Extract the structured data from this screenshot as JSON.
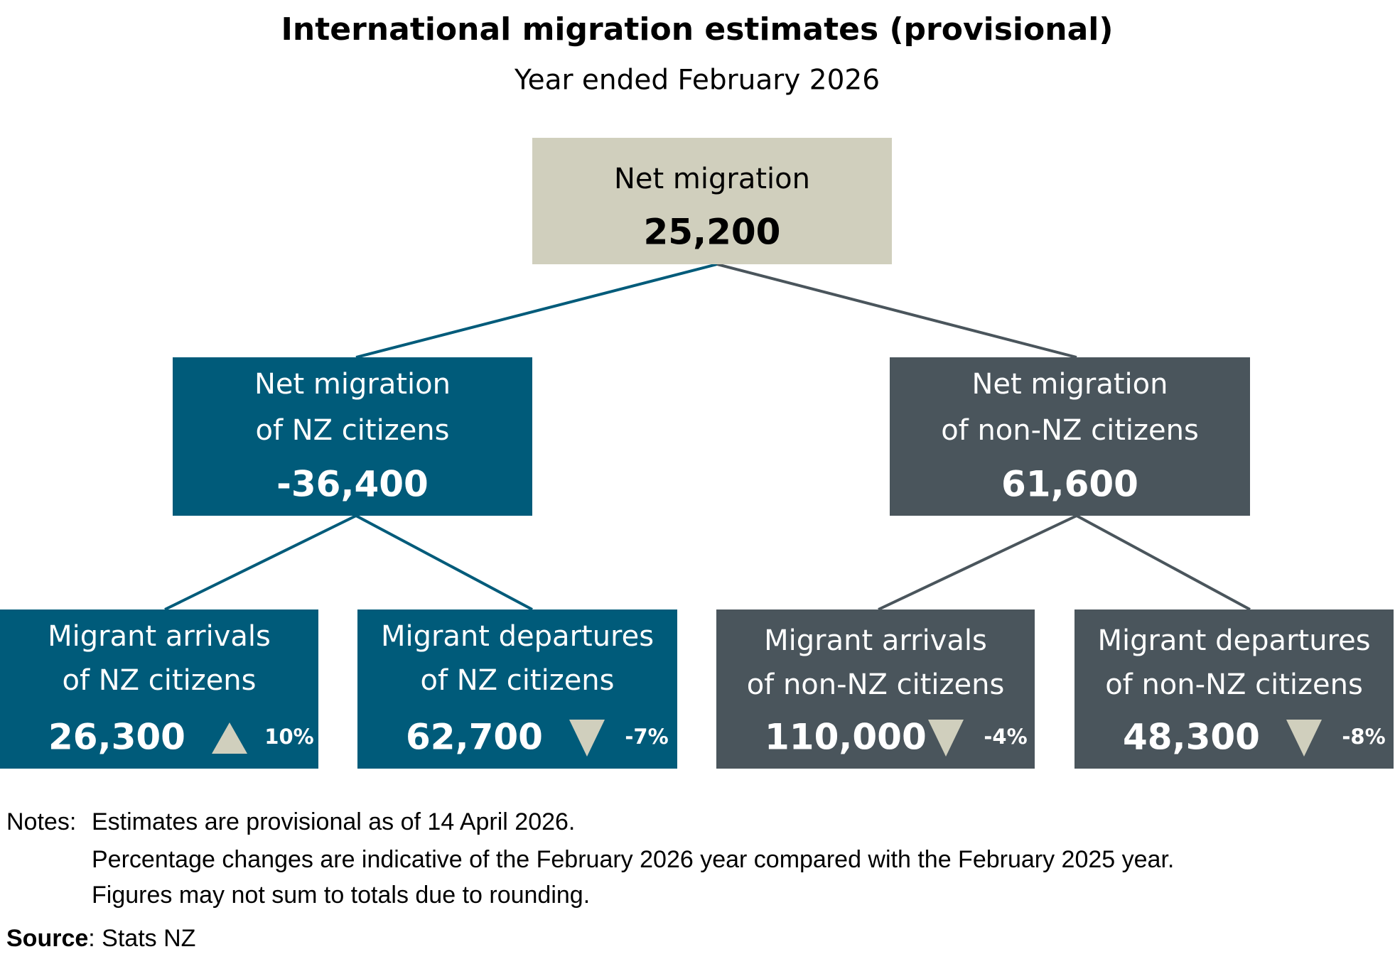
{
  "header": {
    "title": "International migration estimates (provisional)",
    "subtitle": "Year ended February 2026"
  },
  "nodes": [
    {
      "lines": [
        "Net migration"
      ],
      "value": "25,200",
      "color": "#d0cfbd",
      "text_color": "#000000"
    },
    {
      "lines": [
        "Net migration",
        "of NZ citizens"
      ],
      "value": "-36,400",
      "color": "#005b7a",
      "text_color": "#ffffff"
    },
    {
      "lines": [
        "Net migration",
        "of non-NZ citizens"
      ],
      "value": "61,600",
      "color": "#4a555c",
      "text_color": "#ffffff"
    },
    {
      "lines": [
        "Migrant arrivals",
        "of NZ citizens"
      ],
      "value": "26,300",
      "change": "10%",
      "color": "#005b7a",
      "text_color": "#ffffff"
    },
    {
      "lines": [
        "Migrant departures",
        "of NZ citizens"
      ],
      "value": "62,700",
      "change": "-7%",
      "color": "#005b7a",
      "text_color": "#ffffff"
    },
    {
      "lines": [
        "Migrant arrivals",
        "of non-NZ citizens"
      ],
      "value": "110,000",
      "change": "-4%",
      "color": "#4a555c",
      "text_color": "#ffffff"
    },
    {
      "lines": [
        "Migrant departures",
        "of non-NZ citizens"
      ],
      "value": "48,300",
      "change": "-8%",
      "color": "#4a555c",
      "text_color": "#ffffff"
    }
  ],
  "triangle_color": "#d0cfbd",
  "notes": {
    "label": "Notes:",
    "lines": [
      "Estimates are provisional as of 14 April 2026.",
      "Percentage changes are indicative of the February 2026 year compared with the February 2025 year.",
      "Figures may not sum to totals due to rounding."
    ]
  },
  "source": {
    "label": "Source",
    "text": ": Stats NZ"
  }
}
